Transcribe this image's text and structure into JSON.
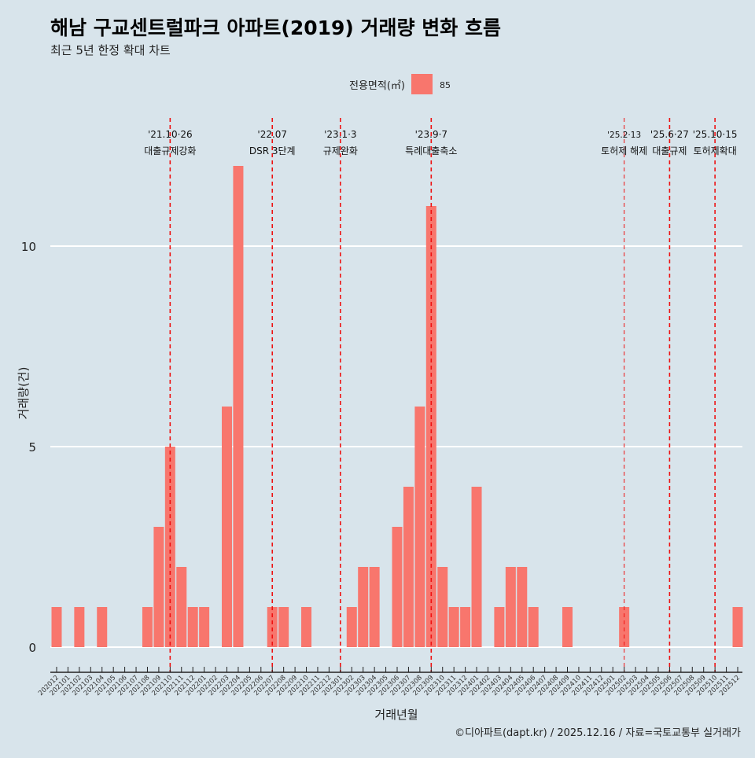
{
  "chart_data": {
    "type": "bar",
    "title": "해남 구교센트럴파크 아파트(2019) 거래량 변화 흐름",
    "subtitle": "최근 5년 한정 확대 차트",
    "xlabel": "거래년월",
    "ylabel": "거래량(건)",
    "ylim": [
      -0.5,
      12.5
    ],
    "yticks": [
      0,
      5,
      10
    ],
    "grid": true,
    "legend": {
      "title": "전용면적(㎡)",
      "entries": [
        "85"
      ],
      "placement": "top"
    },
    "categories": [
      "202012",
      "202101",
      "202102",
      "202103",
      "202104",
      "202105",
      "202106",
      "202107",
      "202108",
      "202109",
      "202110",
      "202111",
      "202112",
      "202201",
      "202202",
      "202203",
      "202204",
      "202205",
      "202206",
      "202207",
      "202208",
      "202209",
      "202210",
      "202211",
      "202212",
      "202301",
      "202302",
      "202303",
      "202304",
      "202305",
      "202306",
      "202307",
      "202308",
      "202309",
      "202310",
      "202311",
      "202312",
      "202401",
      "202402",
      "202403",
      "202404",
      "202405",
      "202406",
      "202407",
      "202408",
      "202409",
      "202410",
      "202411",
      "202412",
      "202501",
      "202502",
      "202503",
      "202504",
      "202505",
      "202506",
      "202507",
      "202508",
      "202509",
      "202510",
      "202511",
      "202512"
    ],
    "series": [
      {
        "name": "85",
        "color": "#f8766d",
        "values": [
          1,
          0,
          1,
          0,
          1,
          0,
          0,
          0,
          1,
          3,
          5,
          2,
          1,
          1,
          0,
          6,
          12,
          0,
          0,
          1,
          1,
          0,
          1,
          0,
          0,
          0,
          1,
          2,
          2,
          0,
          3,
          4,
          6,
          11,
          2,
          1,
          1,
          4,
          0,
          1,
          2,
          2,
          1,
          0,
          0,
          1,
          0,
          0,
          0,
          0,
          1,
          0,
          0,
          0,
          0,
          0,
          0,
          0,
          0,
          0,
          1
        ]
      }
    ],
    "annotations": [
      {
        "category": "202110",
        "date": "'21.10·26",
        "label": "대출규제강화"
      },
      {
        "category": "202207",
        "date": "'22.07",
        "label": "DSR 3단계"
      },
      {
        "category": "202301",
        "date": "'23.1·3",
        "label": "규제완화"
      },
      {
        "category": "202309",
        "date": "'23.9·7",
        "label": "특례대출축소"
      },
      {
        "category": "202502",
        "date": "'25.2·13",
        "label": "토허제 해제",
        "minor": true
      },
      {
        "category": "202506",
        "date": "'25.6·27",
        "label": "대출규제"
      },
      {
        "category": "202510",
        "date": "'25.10·15",
        "label": "토허제확대"
      }
    ],
    "caption": "©디아파트(dapt.kr) / 2025.12.16 / 자료=국토교통부 실거래가"
  }
}
